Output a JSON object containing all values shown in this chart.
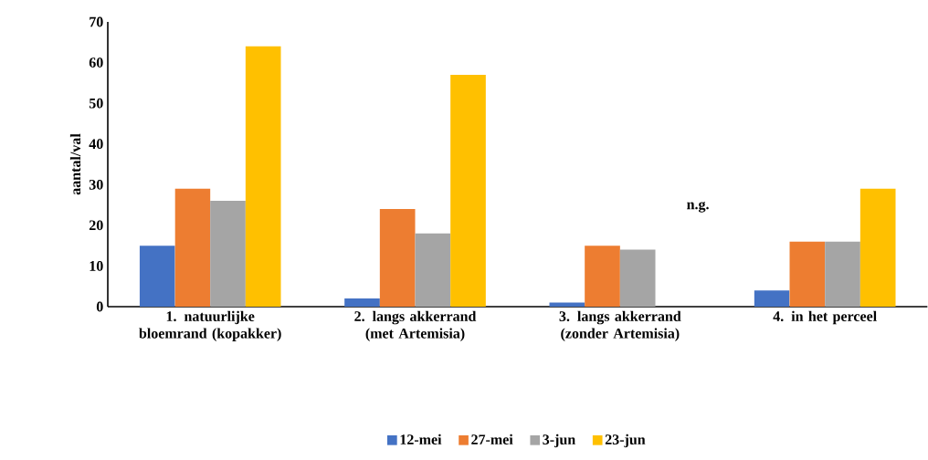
{
  "chart_data": {
    "type": "bar",
    "ylabel": "aantal/val",
    "categories": [
      "1. natuurlijke bloemrand (kopakker)",
      "2. langs akkerrand (met Artemisia)",
      "3. langs akkerrand (zonder Artemisia)",
      "4. in het perceel"
    ],
    "series": [
      {
        "name": "12-mei",
        "color": "#4472c4",
        "values": [
          15,
          2,
          1,
          4
        ]
      },
      {
        "name": "27-mei",
        "color": "#ed7d31",
        "values": [
          29,
          24,
          15,
          16
        ]
      },
      {
        "name": "3-jun",
        "color": "#a5a5a5",
        "values": [
          26,
          18,
          14,
          16
        ]
      },
      {
        "name": "23-jun",
        "color": "#ffc000",
        "values": [
          64,
          57,
          null,
          29
        ]
      }
    ],
    "ylim": [
      0,
      70
    ],
    "yticks": [
      0,
      10,
      20,
      30,
      40,
      50,
      60,
      70
    ],
    "annotations": [
      "n.g."
    ],
    "legend": "bottom",
    "grid": false
  }
}
